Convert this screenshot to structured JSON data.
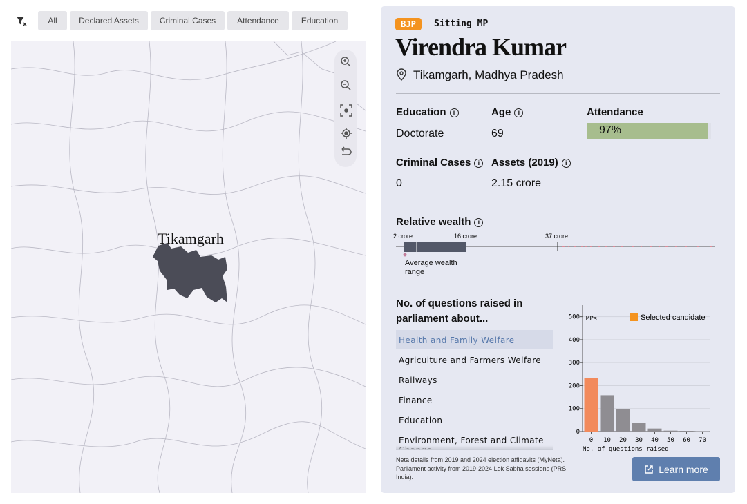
{
  "filters": [
    "All",
    "Declared Assets",
    "Criminal Cases",
    "Attendance",
    "Education"
  ],
  "map": {
    "label": "Tikamgarh"
  },
  "profile": {
    "party": "BJP",
    "status": "Sitting MP",
    "name": "Virendra Kumar",
    "location": "Tikamgarh, Madhya Pradesh",
    "education": {
      "label": "Education",
      "value": "Doctorate"
    },
    "age": {
      "label": "Age",
      "value": 69
    },
    "attendance": {
      "label": "Attendance",
      "value": 97,
      "value_label": "97%"
    },
    "criminal_cases": {
      "label": "Criminal Cases",
      "value": 0
    },
    "assets": {
      "label": "Assets (2019)",
      "value": "2.15 crore"
    }
  },
  "wealth": {
    "title": "Relative wealth",
    "ticks": [
      "2 crore",
      "16 crore",
      "37 crore"
    ],
    "note": "Average wealth range"
  },
  "questions": {
    "title": "No. of questions raised in parliament about...",
    "topics": [
      "Health and Family Welfare",
      "Agriculture and Farmers Welfare",
      "Railways",
      "Finance",
      "Education",
      "Environment, Forest and Climate Change"
    ]
  },
  "footer": "Neta details from 2019 and 2024 election affidavits (MyNeta). Parliament activity from 2019-2024 Lok Sabha sessions (PRS India).",
  "button": "Learn more",
  "chart_data": {
    "type": "bar",
    "y_label": "MPs",
    "x_label": "No. of questions raised",
    "categories": [
      "0",
      "10",
      "20",
      "30",
      "40",
      "50",
      "60",
      "70"
    ],
    "values": [
      232,
      158,
      97,
      37,
      13,
      4,
      3,
      1
    ],
    "bar_colors": [
      "#f28a5c",
      "#8f8d92",
      "#8f8d92",
      "#8f8d92",
      "#8f8d92",
      "#8f8d92",
      "#8f8d92",
      "#8f8d92"
    ],
    "legend": {
      "label": "Selected candidate",
      "color": "#f4931f"
    },
    "ylim": [
      0,
      550
    ],
    "yticks": [
      0,
      100,
      200,
      300,
      400,
      500
    ],
    "grid": true
  }
}
